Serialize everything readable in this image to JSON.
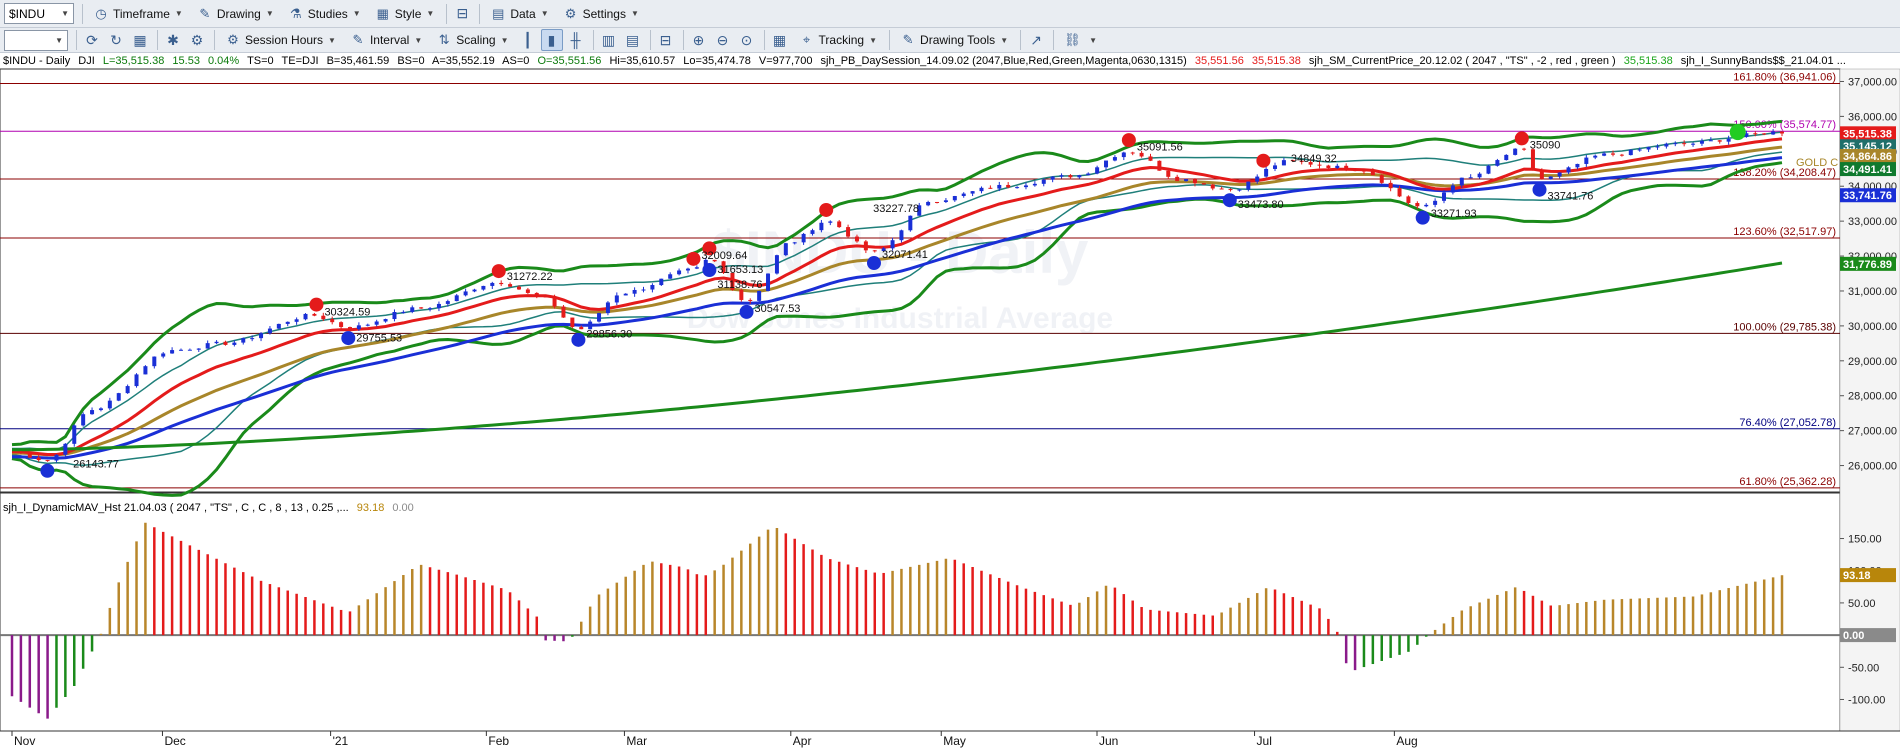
{
  "toolbar1": {
    "symbol": "$INDU",
    "items": [
      {
        "id": "timeframe",
        "label": "Timeframe",
        "icon": "clock-icon"
      },
      {
        "id": "drawing",
        "label": "Drawing",
        "icon": "pencil-icon"
      },
      {
        "id": "studies",
        "label": "Studies",
        "icon": "flask-icon"
      },
      {
        "id": "style",
        "label": "Style",
        "icon": "style-icon"
      },
      {
        "id": "data",
        "label": "Data",
        "icon": "data-icon"
      },
      {
        "id": "settings",
        "label": "Settings",
        "icon": "gear-icon"
      }
    ]
  },
  "toolbar2": {
    "interval_value": "",
    "session_hours": "Session Hours",
    "interval": "Interval",
    "scaling": "Scaling",
    "tracking": "Tracking",
    "drawing_tools": "Drawing Tools"
  },
  "infobar": {
    "symbol": "$INDU - Daily",
    "exchange": "DJI",
    "last": "L=35,515.38",
    "change": "15.53",
    "pct": "0.04%",
    "ts": "TS=0",
    "te": "TE=DJI",
    "bid": "B=35,461.59",
    "bs": "BS=0",
    "ask": "A=35,552.19",
    "as": "AS=0",
    "open": "O=35,551.56",
    "high": "Hi=35,610.57",
    "low": "Lo=35,474.78",
    "volume": "V=977,700",
    "study1": "sjh_PB_DaySession_14.09.02 (2047,Blue,Red,Green,Magenta,0630,1315)",
    "study1_v1": "35,551.56",
    "study1_v2": "35,515.38",
    "study2": "sjh_SM_CurrentPrice_20.12.02 ( 2047 , \"TS\" , -2 , red , green )",
    "study2_v1": "35,515.38",
    "study3": "sjh_I_SunnyBands$$_21.04.01 ..."
  },
  "indicator": {
    "name": "sjh_I_DynamicMAV_Hst 21.04.03 ( 2047 , \"TS\" , C , C ,  8 , 13 , 0.25 ,...",
    "v1": "93.18",
    "v2": "0.00"
  },
  "chart_data": {
    "type": "candlestick",
    "x_labels": [
      "Nov",
      "Dec",
      "'21",
      "Feb",
      "Mar",
      "Apr",
      "May",
      "Jun",
      "Jul",
      "Aug"
    ],
    "y_ticks": [
      "37,000.00",
      "36,000.00",
      "35,000.00",
      "34,000.00",
      "33,000.00",
      "32,000.00",
      "31,000.00",
      "30,000.00",
      "29,000.00",
      "28,000.00",
      "27,000.00",
      "26,000.00"
    ],
    "y_range": [
      25300,
      37300
    ],
    "fib_levels": [
      {
        "label": "161.80% (36,941.06)",
        "value": 36941.06,
        "color": "#8b0000"
      },
      {
        "label": "150.00% (35,574.77)",
        "value": 35574.77,
        "color": "#b000b0"
      },
      {
        "label": "138.20% (34,208.47)",
        "value": 34208.47,
        "color": "#8b0000"
      },
      {
        "label": "123.60% (32,517.97)",
        "value": 32517.97,
        "color": "#8b0000"
      },
      {
        "label": "100.00% (29,785.38)",
        "value": 29785.38,
        "color": "#5a0000"
      },
      {
        "label": "76.40% (27,052.78)",
        "value": 27052.78,
        "color": "#000080"
      },
      {
        "label": "61.80% (25,362.28)",
        "value": 25362.28,
        "color": "#8b0000"
      }
    ],
    "price_tags": [
      {
        "label": "35,515.38",
        "value": 35515.38,
        "color": "#e41b1b"
      },
      {
        "label": "35,145.12",
        "value": 35145.12,
        "color": "#1f6f6a"
      },
      {
        "label": "34,864.86",
        "value": 34864.86,
        "color": "#a8862a"
      },
      {
        "label": "34,491.41",
        "value": 34491.41,
        "color": "#0f7a2e"
      },
      {
        "label": "33,741.76",
        "value": 33741.76,
        "color": "#1a2fd6"
      },
      {
        "label": "31,776.89",
        "value": 31776.89,
        "color": "#1a8a1a"
      }
    ],
    "gold_label": "GOLD C",
    "watermark_title": "$INDU - Daily",
    "watermark_sub": "Dow Jones Industrial Average",
    "swing_labels": [
      {
        "t": 0.03,
        "v": 25950,
        "label": "26143.77"
      },
      {
        "t": 0.19,
        "v": 29560,
        "label": "29755.53"
      },
      {
        "t": 0.172,
        "v": 30300,
        "label": "30324.59"
      },
      {
        "t": 0.275,
        "v": 31320,
        "label": "31272.22"
      },
      {
        "t": 0.32,
        "v": 29670,
        "label": "29856.30"
      },
      {
        "t": 0.394,
        "v": 31520,
        "label": "31653.13"
      },
      {
        "t": 0.394,
        "v": 31080,
        "label": "31138.76"
      },
      {
        "t": 0.385,
        "v": 31920,
        "label": "32009.64"
      },
      {
        "t": 0.415,
        "v": 30400,
        "label": "30547.53"
      },
      {
        "t": 0.482,
        "v": 33260,
        "label": "33227.78"
      },
      {
        "t": 0.487,
        "v": 31950,
        "label": "32071.41"
      },
      {
        "t": 0.631,
        "v": 35020,
        "label": "35091.56"
      },
      {
        "t": 0.688,
        "v": 33380,
        "label": "33473.80"
      },
      {
        "t": 0.718,
        "v": 34700,
        "label": "34849.32"
      },
      {
        "t": 0.797,
        "v": 33120,
        "label": "33271.93"
      },
      {
        "t": 0.853,
        "v": 35080,
        "label": "35090"
      },
      {
        "t": 0.863,
        "v": 33620,
        "label": "33741.76"
      }
    ],
    "ind_ticks": [
      "150.00",
      "100.00",
      "50.00",
      "0.00",
      "-50.00",
      "-100.00"
    ],
    "ind_range": [
      -135,
      185
    ],
    "ind_tags": [
      {
        "label": "93.18",
        "value": 93.18,
        "color": "#b8860b"
      },
      {
        "label": "0.00",
        "value": 0,
        "color": "#8a8a8a"
      }
    ]
  },
  "colors": {
    "up": "#1a2fd6",
    "down": "#e41b1b",
    "hist_gold": "#b8862a",
    "hist_red": "#e41b1b",
    "hist_green": "#1a8a1a",
    "hist_purple": "#8a1a8a"
  }
}
